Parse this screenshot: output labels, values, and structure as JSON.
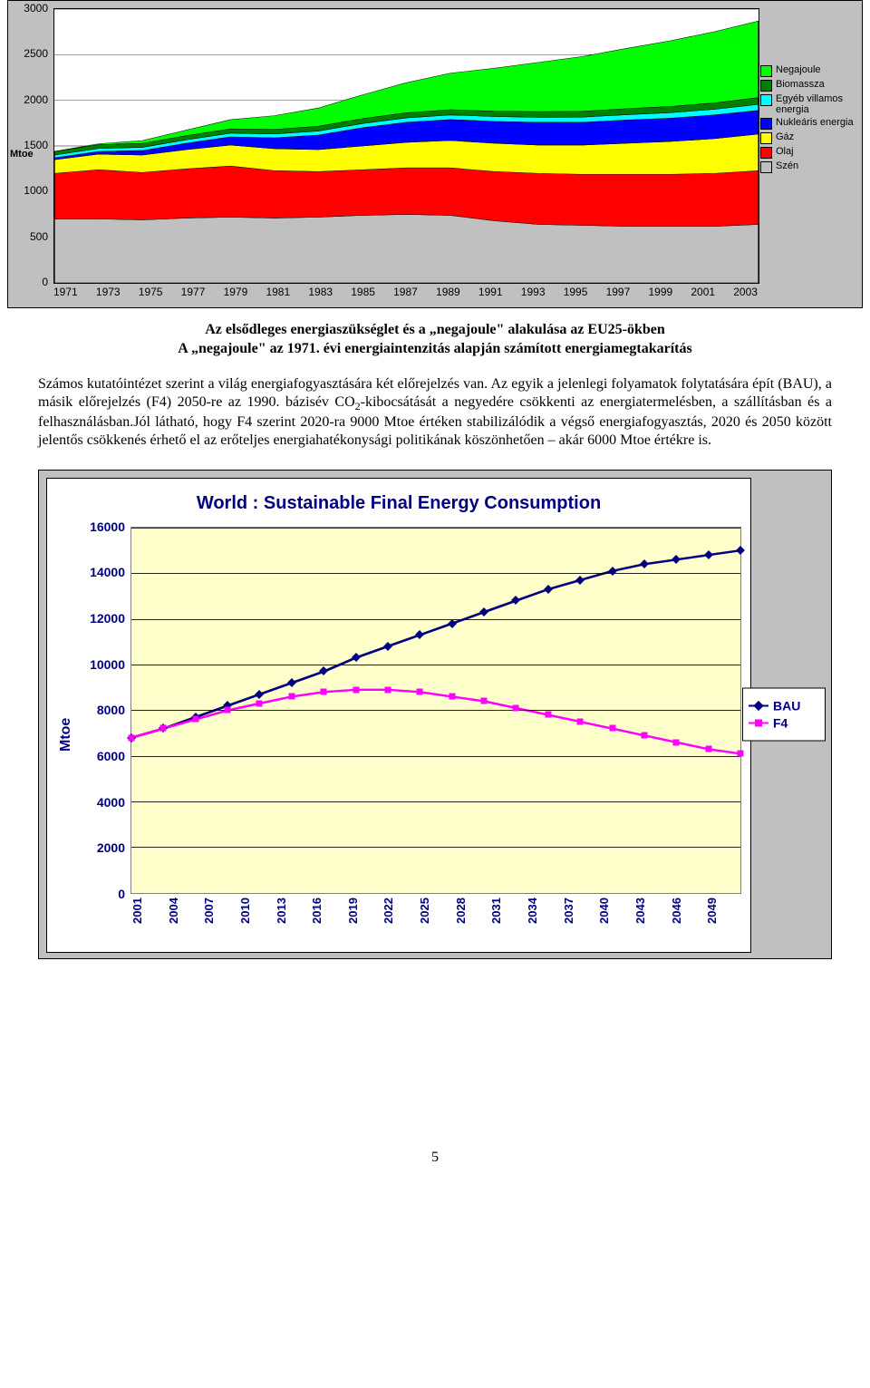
{
  "chart1": {
    "type": "stacked-area",
    "ylabel": "Mtoe",
    "ylabel_fontsize": 11,
    "ylabel_fontweight": "bold",
    "ylim": [
      0,
      3000
    ],
    "ytick_step": 500,
    "yticks": [
      "0",
      "500",
      "1000",
      "1500",
      "2000",
      "2500",
      "3000"
    ],
    "xticks": [
      "1971",
      "1973",
      "1975",
      "1977",
      "1979",
      "1981",
      "1983",
      "1985",
      "1987",
      "1989",
      "1991",
      "1993",
      "1995",
      "1997",
      "1999",
      "2001",
      "2003"
    ],
    "background_color": "#c0c0c0",
    "plot_background": "#ffffff",
    "series": [
      {
        "name": "Szén",
        "color": "#c0c0c0",
        "values": [
          700,
          700,
          690,
          710,
          720,
          710,
          720,
          740,
          750,
          740,
          680,
          640,
          630,
          620,
          620,
          620,
          640
        ]
      },
      {
        "name": "Olaj",
        "color": "#ff0000",
        "values": [
          500,
          540,
          520,
          540,
          560,
          520,
          500,
          500,
          510,
          520,
          540,
          560,
          560,
          570,
          570,
          580,
          590
        ]
      },
      {
        "name": "Gáz",
        "color": "#ffff00",
        "values": [
          150,
          170,
          190,
          210,
          230,
          240,
          240,
          260,
          280,
          300,
          310,
          310,
          320,
          340,
          360,
          380,
          400
        ]
      },
      {
        "name": "Nukleáris energia",
        "color": "#0000ff",
        "values": [
          20,
          30,
          50,
          70,
          90,
          120,
          160,
          200,
          220,
          230,
          240,
          250,
          250,
          255,
          255,
          260,
          260
        ]
      },
      {
        "name": "Egyéb villamos energia",
        "color": "#00ffff",
        "values": [
          30,
          32,
          35,
          38,
          40,
          42,
          44,
          46,
          48,
          50,
          52,
          54,
          56,
          58,
          60,
          62,
          65
        ]
      },
      {
        "name": "Biomassza",
        "color": "#008000",
        "values": [
          40,
          42,
          44,
          46,
          48,
          50,
          52,
          54,
          56,
          58,
          60,
          62,
          64,
          66,
          68,
          70,
          75
        ]
      },
      {
        "name": "Negajoule",
        "color": "#00ff00",
        "values": [
          0,
          10,
          30,
          60,
          100,
          150,
          200,
          260,
          330,
          400,
          470,
          540,
          600,
          660,
          720,
          780,
          840
        ]
      }
    ],
    "legend": [
      {
        "label": "Negajoule",
        "color": "#00ff00"
      },
      {
        "label": "Biomassza",
        "color": "#008000"
      },
      {
        "label": "Egyéb villamos energia",
        "color": "#00ffff"
      },
      {
        "label": "Nukleáris energia",
        "color": "#0000ff"
      },
      {
        "label": "Gáz",
        "color": "#ffff00"
      },
      {
        "label": "Olaj",
        "color": "#ff0000"
      },
      {
        "label": "Szén",
        "color": "#c0c0c0"
      }
    ]
  },
  "caption": {
    "line1": "Az elsődleges energiaszükséglet és a „negajoule\" alakulása az EU25-ökben",
    "line2": "A „negajoule\" az 1971. évi energiaintenzitás alapján számított energiamegtakarítás"
  },
  "paragraph": {
    "text_before_sub": "Számos kutatóintézet szerint a világ energiafogyasztására két előrejelzés van. Az egyik a jelenlegi folyamatok folytatására épít (BAU), a másik előrejelzés (F4) 2050-re az 1990. bázisév CO",
    "sub": "2",
    "text_after_sub": "-kibocsátását a negyedére csökkenti az energiatermelésben, a szállításban és a felhasználásban.Jól látható, hogy F4 szerint 2020-ra 9000 Mtoe értéken stabilizálódik a végső energiafogyasztás, 2020 és 2050 között jelentős csökkenés érhető el az erőteljes energiahatékonysági politikának köszönhetően – akár 6000 Mtoe értékre is."
  },
  "chart2": {
    "type": "line",
    "title": "World : Sustainable Final Energy Consumption",
    "title_color": "#000080",
    "title_fontsize": 20,
    "ylabel": "Mtoe",
    "ylabel_color": "#000080",
    "ylim": [
      0,
      16000
    ],
    "ytick_step": 2000,
    "yticks": [
      "0",
      "2000",
      "4000",
      "6000",
      "8000",
      "10000",
      "12000",
      "14000",
      "16000"
    ],
    "xticks": [
      "2001",
      "2004",
      "2007",
      "2010",
      "2013",
      "2016",
      "2019",
      "2022",
      "2025",
      "2028",
      "2031",
      "2034",
      "2037",
      "2040",
      "2043",
      "2046",
      "2049"
    ],
    "plot_background": "#ffffcc",
    "grid_color": "#000000",
    "outer_background": "#c0c0c0",
    "series": [
      {
        "name": "BAU",
        "color": "#000080",
        "marker": "diamond",
        "values": [
          6800,
          7200,
          7700,
          8200,
          8700,
          9200,
          9700,
          10300,
          10800,
          11300,
          11800,
          12300,
          12800,
          13300,
          13700,
          14100,
          14400,
          14600,
          14800,
          15000
        ]
      },
      {
        "name": "F4",
        "color": "#ff00ff",
        "marker": "square",
        "values": [
          6800,
          7200,
          7600,
          8000,
          8300,
          8600,
          8800,
          8900,
          8900,
          8800,
          8600,
          8400,
          8100,
          7800,
          7500,
          7200,
          6900,
          6600,
          6300,
          6100
        ]
      }
    ],
    "legend": [
      {
        "label": "BAU",
        "color": "#000080",
        "marker": "diamond"
      },
      {
        "label": "F4",
        "color": "#ff00ff",
        "marker": "square"
      }
    ]
  },
  "page_number": "5"
}
